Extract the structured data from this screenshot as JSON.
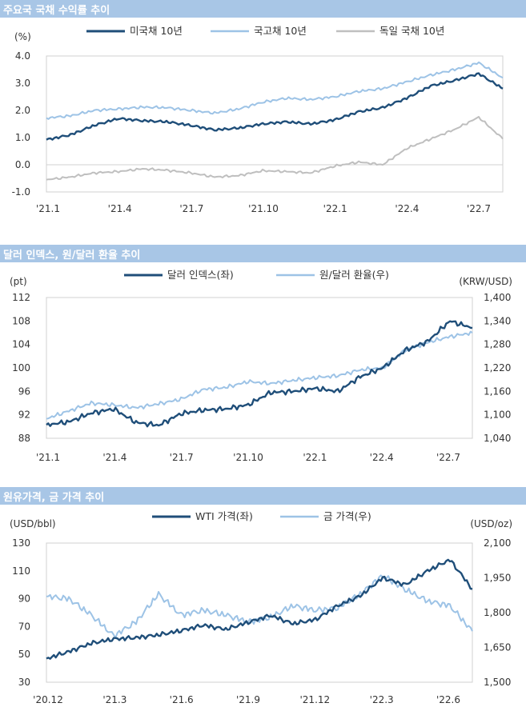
{
  "colors": {
    "dark": "#1f4e79",
    "light": "#9dc3e6",
    "gray": "#bfbfbf",
    "header_bg": "#a8c6e6",
    "grid": "#d9d9d9"
  },
  "panels": [
    {
      "title": "주요국 국채 수익률 추이"
    },
    {
      "title": "달러 인덱스, 원/달러 환율 추이"
    },
    {
      "title": "원유가격, 금 가격 추이"
    }
  ],
  "chart_data": [
    {
      "type": "line",
      "title": "주요국 국채 수익률 추이",
      "ylabel": "(%)",
      "ylim": [
        -1.0,
        4.0
      ],
      "yticks": [
        "4.0",
        "3.0",
        "2.0",
        "1.0",
        "0.0",
        "-1.0"
      ],
      "xticks": [
        "'21.1",
        "'21.4",
        "'21.7",
        "'21.10",
        "'22.1",
        "'22.4",
        "'22.7"
      ],
      "x": [
        "'21.1",
        "'21.2",
        "'21.3",
        "'21.4",
        "'21.5",
        "'21.6",
        "'21.7",
        "'21.8",
        "'21.9",
        "'21.10",
        "'21.11",
        "'21.12",
        "'22.1",
        "'22.2",
        "'22.3",
        "'22.4",
        "'22.5",
        "'22.6",
        "'22.7",
        "'22.8"
      ],
      "legend": "top",
      "series": [
        {
          "name": "미국채 10년",
          "color": "#1f4e79",
          "values": [
            0.92,
            1.1,
            1.45,
            1.7,
            1.62,
            1.58,
            1.45,
            1.28,
            1.35,
            1.5,
            1.58,
            1.5,
            1.65,
            1.95,
            2.1,
            2.45,
            2.9,
            3.1,
            3.35,
            2.8
          ]
        },
        {
          "name": "국고채 10년",
          "color": "#9dc3e6",
          "values": [
            1.72,
            1.8,
            2.0,
            2.05,
            2.12,
            2.1,
            2.0,
            1.9,
            2.05,
            2.3,
            2.45,
            2.4,
            2.5,
            2.7,
            2.8,
            3.05,
            3.3,
            3.5,
            3.75,
            3.2
          ]
        },
        {
          "name": "독일 국채 10년",
          "color": "#bfbfbf",
          "values": [
            -0.55,
            -0.45,
            -0.3,
            -0.25,
            -0.15,
            -0.2,
            -0.3,
            -0.45,
            -0.4,
            -0.22,
            -0.25,
            -0.3,
            -0.05,
            0.1,
            0.0,
            0.6,
            0.95,
            1.3,
            1.75,
            0.95
          ]
        }
      ]
    },
    {
      "type": "line",
      "title": "달러 인덱스, 원/달러 환율 추이",
      "ylabel": "(pt)",
      "ylabel_right": "(KRW/USD)",
      "ylim": [
        88,
        112
      ],
      "ylim_right": [
        1040,
        1400
      ],
      "yticks": [
        "112",
        "108",
        "104",
        "100",
        "96",
        "92",
        "88"
      ],
      "yticks_right": [
        "1,400",
        "1,340",
        "1,280",
        "1,220",
        "1,160",
        "1,100",
        "1,040"
      ],
      "xticks": [
        "'21.1",
        "'21.4",
        "'21.7",
        "'21.10",
        "'22.1",
        "'22.4",
        "'22.7"
      ],
      "x": [
        "'21.1",
        "'21.2",
        "'21.3",
        "'21.4",
        "'21.5",
        "'21.6",
        "'21.7",
        "'21.8",
        "'21.9",
        "'21.10",
        "'21.11",
        "'21.12",
        "'22.1",
        "'22.2",
        "'22.3",
        "'22.4",
        "'22.5",
        "'22.6",
        "'22.7",
        "'22.8"
      ],
      "legend": "top",
      "series": [
        {
          "name": "달러 인덱스(좌)",
          "axis": "left",
          "color": "#1f4e79",
          "values": [
            90.3,
            90.8,
            92.3,
            93.0,
            90.7,
            90.2,
            92.2,
            92.8,
            93.0,
            93.7,
            95.8,
            96.0,
            96.5,
            96.0,
            98.5,
            100.0,
            103.0,
            104.5,
            108.0,
            106.8
          ]
        },
        {
          "name": "원/달러 환율(우)",
          "axis": "right",
          "color": "#9dc3e6",
          "values": [
            1090,
            1110,
            1130,
            1125,
            1118,
            1128,
            1140,
            1165,
            1170,
            1185,
            1180,
            1188,
            1195,
            1200,
            1215,
            1220,
            1265,
            1285,
            1300,
            1310
          ]
        }
      ]
    },
    {
      "type": "line",
      "title": "원유가격, 금 가격 추이",
      "ylabel": "(USD/bbl)",
      "ylabel_right": "(USD/oz)",
      "ylim": [
        30,
        130
      ],
      "ylim_right": [
        1500,
        2100
      ],
      "yticks": [
        "130",
        "110",
        "90",
        "70",
        "50",
        "30"
      ],
      "yticks_right": [
        "2,100",
        "1,950",
        "1,800",
        "1,650",
        "1,500"
      ],
      "xticks": [
        "'20.12",
        "'21.3",
        "'21.6",
        "'21.9",
        "'21.12",
        "'22.3",
        "'22.6"
      ],
      "x": [
        "'20.12",
        "'21.1",
        "'21.2",
        "'21.3",
        "'21.4",
        "'21.5",
        "'21.6",
        "'21.7",
        "'21.8",
        "'21.9",
        "'21.10",
        "'21.11",
        "'21.12",
        "'22.1",
        "'22.2",
        "'22.3",
        "'22.4",
        "'22.5",
        "'22.6",
        "'22.7"
      ],
      "legend": "top",
      "series": [
        {
          "name": "WTI 가격(좌)",
          "axis": "left",
          "color": "#1f4e79",
          "values": [
            47,
            52,
            58,
            61,
            62,
            64,
            67,
            71,
            68,
            73,
            78,
            72,
            75,
            85,
            92,
            105,
            100,
            110,
            118,
            97
          ]
        },
        {
          "name": "금 가격(우)",
          "axis": "right",
          "color": "#9dc3e6",
          "values": [
            1870,
            1860,
            1790,
            1700,
            1760,
            1880,
            1790,
            1810,
            1790,
            1760,
            1780,
            1830,
            1810,
            1820,
            1880,
            1960,
            1900,
            1850,
            1830,
            1720
          ]
        }
      ]
    }
  ]
}
